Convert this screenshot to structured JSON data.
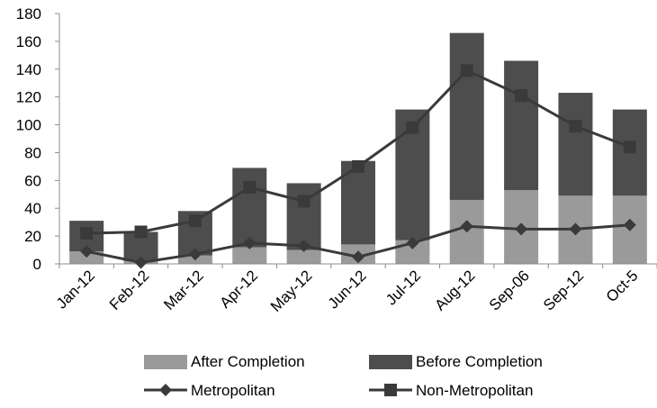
{
  "chart_data": {
    "type": "bar",
    "stacked": true,
    "categories": [
      "Jan-12",
      "Feb-12",
      "Mar-12",
      "Apr-12",
      "May-12",
      "Jun-12",
      "Jul-12",
      "Aug-12",
      "Sep-06",
      "Sep-12",
      "Oct-5"
    ],
    "ylim": [
      0,
      180
    ],
    "yticks": [
      0,
      20,
      40,
      60,
      80,
      100,
      120,
      140,
      160,
      180
    ],
    "grid": false,
    "legend_position": "bottom",
    "bar_series": [
      {
        "name": "After Completion",
        "color": "#9a9a9a",
        "values": [
          9,
          2,
          6,
          12,
          10,
          14,
          17,
          46,
          53,
          49,
          49
        ]
      },
      {
        "name": "Before Completion",
        "color": "#4d4d4d",
        "values": [
          22,
          21,
          32,
          57,
          48,
          60,
          94,
          120,
          93,
          74,
          62
        ]
      }
    ],
    "line_series": [
      {
        "name": "Metropolitan",
        "marker": "diamond",
        "color": "#3a3a3a",
        "values": [
          9,
          1,
          7,
          15,
          13,
          5,
          15,
          27,
          25,
          25,
          28
        ]
      },
      {
        "name": "Non-Metropolitan",
        "marker": "square",
        "color": "#3a3a3a",
        "values": [
          22,
          23,
          31,
          55,
          45,
          70,
          98,
          139,
          121,
          99,
          84
        ]
      }
    ]
  }
}
